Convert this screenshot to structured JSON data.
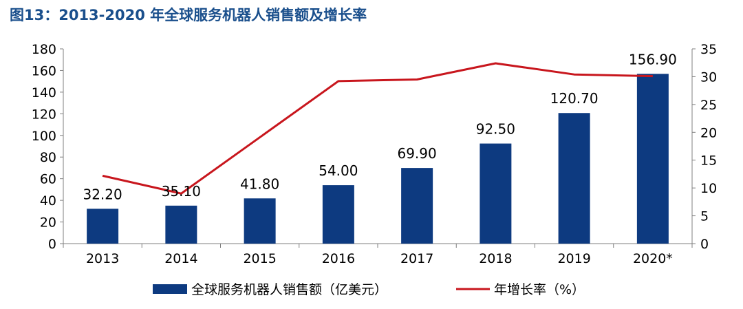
{
  "title": "图13：2013-2020 年全球服务机器人销售额及增长率",
  "chart_data": {
    "type": "bar",
    "title": "图13：2013-2020 年全球服务机器人销售额及增长率",
    "categories": [
      "2013",
      "2014",
      "2015",
      "2016",
      "2017",
      "2018",
      "2019",
      "2020*"
    ],
    "series": [
      {
        "name": "全球服务机器人销售额（亿美元）",
        "type": "bar",
        "axis": "left",
        "color": "#0d3a80",
        "values": [
          32.2,
          35.1,
          41.8,
          54.0,
          69.9,
          92.5,
          120.7,
          156.9
        ],
        "labels": [
          "32.20",
          "35.10",
          "41.80",
          "54.00",
          "69.90",
          "92.50",
          "120.70",
          "156.90"
        ]
      },
      {
        "name": "年增长率（%）",
        "type": "line",
        "axis": "right",
        "color": "#c8161d",
        "values": [
          12.2,
          9.0,
          19.1,
          29.2,
          29.5,
          32.4,
          30.4,
          30.1
        ]
      }
    ],
    "ylim_left": [
      0,
      180
    ],
    "yticks_left": [
      "0",
      "20",
      "40",
      "60",
      "80",
      "100",
      "120",
      "140",
      "160",
      "180"
    ],
    "ylim_right": [
      0,
      35
    ],
    "yticks_right": [
      "0",
      "5",
      "10",
      "15",
      "20",
      "25",
      "30",
      "35"
    ],
    "grid": false,
    "legend_position": "bottom"
  }
}
